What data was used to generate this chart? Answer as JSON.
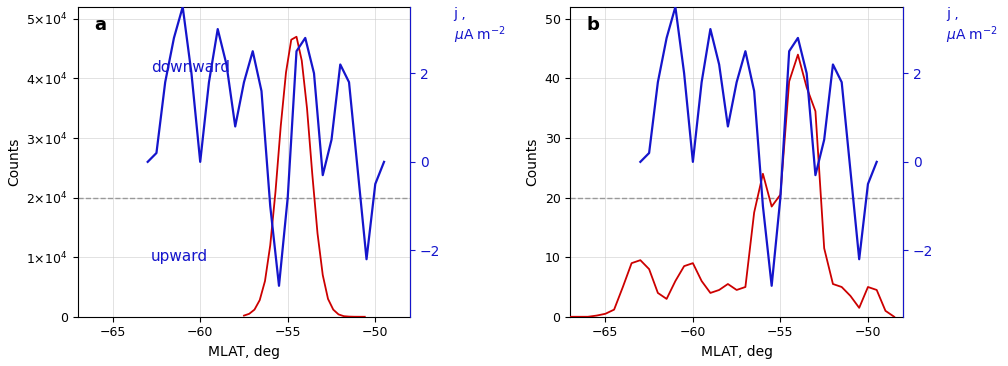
{
  "panel_a": {
    "label": "a",
    "xlim": [
      -67,
      -48
    ],
    "xticks": [
      -65,
      -60,
      -55,
      -50
    ],
    "xlabel": "MLAT, deg",
    "ylabel_left": "Counts",
    "yticks_left_a": [
      0,
      10000,
      20000,
      30000,
      40000,
      50000
    ],
    "ytick_labels_a": [
      "0",
      "1×10⁴",
      "2×10⁴",
      "3×10⁴",
      "4×10⁴",
      "5×10⁴"
    ],
    "ylim_left": [
      0,
      52000
    ],
    "ylim_right": [
      -3.5,
      3.5
    ],
    "yticks_right": [
      -2,
      0,
      2
    ],
    "dashed_y_left": 20000,
    "annotation_down": "downward",
    "annotation_up": "upward",
    "red_x": [
      -57.5,
      -57.2,
      -56.9,
      -56.6,
      -56.3,
      -56.0,
      -55.7,
      -55.4,
      -55.1,
      -54.8,
      -54.5,
      -54.2,
      -53.9,
      -53.6,
      -53.3,
      -53.0,
      -52.7,
      -52.4,
      -52.1,
      -51.8,
      -51.5,
      -51.2,
      -50.9,
      -50.6
    ],
    "red_y": [
      200,
      500,
      1200,
      2800,
      6000,
      12000,
      21000,
      32000,
      41000,
      46500,
      47000,
      43000,
      35000,
      24000,
      14000,
      7000,
      3000,
      1200,
      400,
      100,
      30,
      5,
      1,
      0
    ],
    "blue_x": [
      -63.0,
      -62.5,
      -62.0,
      -61.5,
      -61.0,
      -60.5,
      -60.0,
      -59.5,
      -59.0,
      -58.5,
      -58.0,
      -57.5,
      -57.0,
      -56.5,
      -56.0,
      -55.5,
      -55.0,
      -54.5,
      -54.0,
      -53.5,
      -53.0,
      -52.5,
      -52.0,
      -51.5,
      -51.0,
      -50.5,
      -50.0,
      -49.5
    ],
    "blue_y": [
      0.0,
      0.2,
      1.8,
      2.8,
      3.5,
      2.0,
      0.0,
      1.8,
      3.0,
      2.2,
      0.8,
      1.8,
      2.5,
      1.6,
      -1.0,
      -2.8,
      -0.8,
      2.5,
      2.8,
      2.0,
      -0.3,
      0.5,
      2.2,
      1.8,
      -0.2,
      -2.2,
      -0.5,
      0.0
    ]
  },
  "panel_b": {
    "label": "b",
    "xlim": [
      -67,
      -48
    ],
    "xticks": [
      -65,
      -60,
      -55,
      -50
    ],
    "xlabel": "MLAT, deg",
    "ylabel_left": "Counts",
    "yticks_left_b": [
      0,
      10,
      20,
      30,
      40,
      50
    ],
    "ylim_left": [
      0,
      52
    ],
    "ylim_right": [
      -3.5,
      3.5
    ],
    "yticks_right": [
      -2,
      0,
      2
    ],
    "dashed_y_left": 20,
    "red_x": [
      -67.0,
      -66.5,
      -66.0,
      -65.5,
      -65.0,
      -64.5,
      -64.0,
      -63.5,
      -63.0,
      -62.5,
      -62.0,
      -61.5,
      -61.0,
      -60.5,
      -60.0,
      -59.5,
      -59.0,
      -58.5,
      -58.0,
      -57.5,
      -57.0,
      -56.5,
      -56.0,
      -55.5,
      -55.0,
      -54.5,
      -54.0,
      -53.5,
      -53.0,
      -52.5,
      -52.0,
      -51.5,
      -51.0,
      -50.5,
      -50.0,
      -49.5,
      -49.0,
      -48.5
    ],
    "red_y": [
      0,
      0,
      0,
      0.2,
      0.5,
      1.2,
      5.0,
      9.0,
      9.5,
      8.0,
      4.0,
      3.0,
      6.0,
      8.5,
      9.0,
      6.0,
      4.0,
      4.5,
      5.5,
      4.5,
      5.0,
      17.5,
      24.0,
      18.5,
      20.5,
      39.5,
      44.0,
      38.5,
      34.5,
      11.5,
      5.5,
      5.0,
      3.5,
      1.5,
      5.0,
      4.5,
      1.0,
      0
    ],
    "blue_x": [
      -63.0,
      -62.5,
      -62.0,
      -61.5,
      -61.0,
      -60.5,
      -60.0,
      -59.5,
      -59.0,
      -58.5,
      -58.0,
      -57.5,
      -57.0,
      -56.5,
      -56.0,
      -55.5,
      -55.0,
      -54.5,
      -54.0,
      -53.5,
      -53.0,
      -52.5,
      -52.0,
      -51.5,
      -51.0,
      -50.5,
      -50.0,
      -49.5
    ],
    "blue_y": [
      0.0,
      0.2,
      1.8,
      2.8,
      3.5,
      2.0,
      0.0,
      1.8,
      3.0,
      2.2,
      0.8,
      1.8,
      2.5,
      1.6,
      -1.0,
      -2.8,
      -0.8,
      2.5,
      2.8,
      2.0,
      -0.3,
      0.5,
      2.2,
      1.8,
      -0.2,
      -2.2,
      -0.5,
      0.0
    ]
  },
  "red_color": "#cc0000",
  "blue_color": "#1515cc",
  "dashed_color": "#999999",
  "bg_color": "#ffffff",
  "fig_bg": "#ffffff"
}
